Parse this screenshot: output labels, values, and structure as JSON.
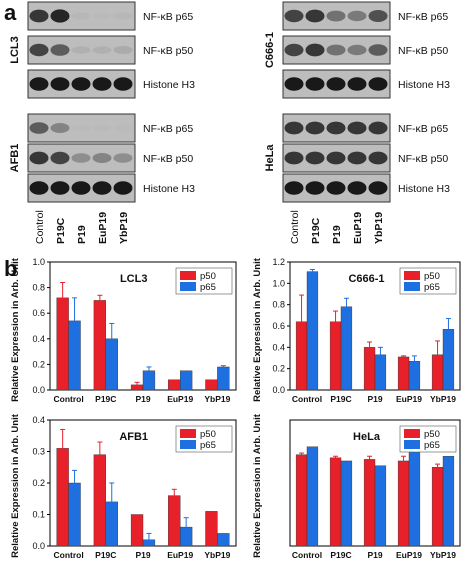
{
  "panel_a": {
    "letter": "a",
    "lanes": [
      "Control",
      "P19C",
      "P19",
      "EuP19",
      "YbP19"
    ],
    "blots": [
      {
        "cell": "LCL3",
        "rows": [
          {
            "label": "NF-κB p65",
            "bands": [
              0.85,
              0.9,
              0.12,
              0.1,
              0.12
            ]
          },
          {
            "label": "NF-κB p50",
            "bands": [
              0.8,
              0.7,
              0.2,
              0.2,
              0.25
            ]
          },
          {
            "label": "Histone H3",
            "bands": [
              0.95,
              0.95,
              0.95,
              0.95,
              0.95
            ]
          }
        ]
      },
      {
        "cell": "C666-1",
        "rows": [
          {
            "label": "NF-κB p65",
            "bands": [
              0.8,
              0.85,
              0.6,
              0.55,
              0.75
            ]
          },
          {
            "label": "NF-κB p50",
            "bands": [
              0.8,
              0.85,
              0.6,
              0.55,
              0.7
            ]
          },
          {
            "label": "Histone H3",
            "bands": [
              0.95,
              0.95,
              0.95,
              0.95,
              0.95
            ]
          }
        ]
      },
      {
        "cell": "AFB1",
        "rows": [
          {
            "label": "NF-κB p65",
            "bands": [
              0.7,
              0.5,
              0.1,
              0.1,
              0.1
            ]
          },
          {
            "label": "NF-κB p50",
            "bands": [
              0.85,
              0.8,
              0.45,
              0.5,
              0.45
            ]
          },
          {
            "label": "Histone H3",
            "bands": [
              0.95,
              0.95,
              0.95,
              0.95,
              0.95
            ]
          }
        ]
      },
      {
        "cell": "HeLa",
        "rows": [
          {
            "label": "NF-κB p65",
            "bands": [
              0.85,
              0.85,
              0.85,
              0.85,
              0.85
            ]
          },
          {
            "label": "NF-κB p50",
            "bands": [
              0.85,
              0.85,
              0.85,
              0.85,
              0.85
            ]
          },
          {
            "label": "Histone H3",
            "bands": [
              0.95,
              0.95,
              0.95,
              0.95,
              0.95
            ]
          }
        ]
      }
    ]
  },
  "panel_b": {
    "letter": "b"
  },
  "ylabel": "Relative Expression in Arb. Unit",
  "colors": {
    "p50": "#e8202a",
    "p65": "#1e6fe0"
  },
  "chart_data": [
    {
      "type": "bar",
      "title": "LCL3",
      "categories": [
        "Control",
        "P19C",
        "P19",
        "EuP19",
        "YbP19"
      ],
      "ylim": [
        0,
        1.0
      ],
      "yticks": [
        0.0,
        0.2,
        0.4,
        0.6,
        0.8,
        1.0
      ],
      "legend": "top-right",
      "series": [
        {
          "name": "p50",
          "values": [
            0.72,
            0.7,
            0.04,
            0.08,
            0.08
          ],
          "err": [
            0.12,
            0.04,
            0.02,
            0.0,
            0.0
          ]
        },
        {
          "name": "p65",
          "values": [
            0.54,
            0.4,
            0.15,
            0.15,
            0.18
          ],
          "err": [
            0.18,
            0.12,
            0.03,
            0.0,
            0.01
          ]
        }
      ]
    },
    {
      "type": "bar",
      "title": "C666-1",
      "categories": [
        "Control",
        "P19C",
        "P19",
        "EuP19",
        "YbP19"
      ],
      "ylim": [
        0,
        1.2
      ],
      "yticks": [
        0.0,
        0.2,
        0.4,
        0.6,
        0.8,
        1.0,
        1.2
      ],
      "legend": "top-right",
      "series": [
        {
          "name": "p50",
          "values": [
            0.64,
            0.64,
            0.4,
            0.31,
            0.33
          ],
          "err": [
            0.25,
            0.1,
            0.05,
            0.01,
            0.13
          ]
        },
        {
          "name": "p65",
          "values": [
            1.11,
            0.78,
            0.33,
            0.27,
            0.57
          ],
          "err": [
            0.02,
            0.08,
            0.07,
            0.05,
            0.1
          ]
        }
      ]
    },
    {
      "type": "bar",
      "title": "AFB1",
      "categories": [
        "Control",
        "P19C",
        "P19",
        "EuP19",
        "YbP19"
      ],
      "ylim": [
        0,
        0.4
      ],
      "yticks": [
        0.0,
        0.1,
        0.2,
        0.3,
        0.4
      ],
      "legend": "top-right",
      "series": [
        {
          "name": "p50",
          "values": [
            0.31,
            0.29,
            0.1,
            0.16,
            0.11
          ],
          "err": [
            0.06,
            0.04,
            0.0,
            0.02,
            0.0
          ]
        },
        {
          "name": "p65",
          "values": [
            0.2,
            0.14,
            0.02,
            0.06,
            0.04
          ],
          "err": [
            0.04,
            0.06,
            0.02,
            0.03,
            0.0
          ]
        }
      ]
    },
    {
      "type": "bar",
      "title": "HeLa",
      "categories": [
        "Control",
        "P19C",
        "P19",
        "EuP19",
        "YbP19"
      ],
      "ylim": [
        0,
        0.8
      ],
      "yticks": [],
      "legend": "top-right",
      "series": [
        {
          "name": "p50",
          "values": [
            0.58,
            0.56,
            0.55,
            0.54,
            0.5
          ],
          "err": [
            0.01,
            0.01,
            0.02,
            0.03,
            0.02
          ]
        },
        {
          "name": "p65",
          "values": [
            0.63,
            0.54,
            0.51,
            0.62,
            0.57
          ],
          "err": [
            0.0,
            0.0,
            0.0,
            0.0,
            0.0
          ]
        }
      ]
    }
  ]
}
